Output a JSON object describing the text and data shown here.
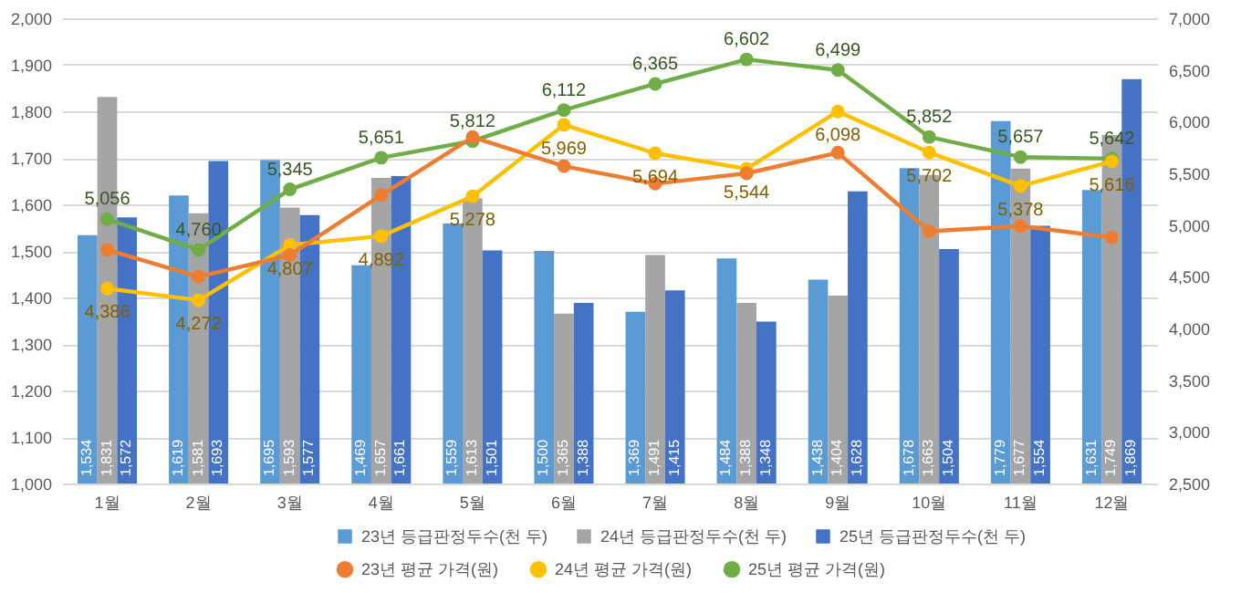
{
  "chart_data": {
    "type": "bar",
    "categories": [
      "1월",
      "2월",
      "3월",
      "4월",
      "5월",
      "6월",
      "7월",
      "8월",
      "9월",
      "10월",
      "11월",
      "12월"
    ],
    "series": [
      {
        "name": "23년 등급판정두수(천 두)",
        "color": "#5b9bd5",
        "values": [
          1534,
          1619,
          1695,
          1469,
          1559,
          1500,
          1369,
          1484,
          1438,
          1678,
          1779,
          1631
        ],
        "value_labels": [
          "1,534",
          "1,619",
          "1,695",
          "1,469",
          "1,559",
          "1,500",
          "1,369",
          "1,484",
          "1,438",
          "1,678",
          "1,779",
          "1,631"
        ]
      },
      {
        "name": "24년 등급판정두수(천 두)",
        "color": "#a5a5a5",
        "values": [
          1831,
          1581,
          1593,
          1657,
          1613,
          1365,
          1491,
          1388,
          1404,
          1663,
          1677,
          1749
        ],
        "value_labels": [
          "1,831",
          "1,581",
          "1,593",
          "1,657",
          "1,613",
          "1,365",
          "1,491",
          "1,388",
          "1,404",
          "1,663",
          "1,677",
          "1,749"
        ]
      },
      {
        "name": "25년 등급판정두수(천 두)",
        "color": "#4472c4",
        "values": [
          1572,
          1693,
          1577,
          1661,
          1501,
          1388,
          1415,
          1348,
          1628,
          1504,
          1554,
          1869
        ],
        "value_labels": [
          "1,572",
          "1,693",
          "1,577",
          "1,661",
          "1,501",
          "1,388",
          "1,415",
          "1,348",
          "1,628",
          "1,504",
          "1,554",
          "1,869"
        ]
      },
      {
        "name": "23년 평균 가격(원)",
        "type": "line",
        "axis": "y2",
        "color": "#ed7d31",
        "values": [
          4760,
          4500,
          4710,
          5290,
          5850,
          5570,
          5400,
          5500,
          5700,
          4940,
          4990,
          4880
        ]
      },
      {
        "name": "24년 평균 가격(원)",
        "type": "line",
        "axis": "y2",
        "color": "#ffc000",
        "values": [
          4386,
          4272,
          4807,
          4892,
          5278,
          5969,
          5694,
          5544,
          6098,
          5702,
          5378,
          5616
        ],
        "value_labels": [
          "4,386",
          "4,272",
          "4,807",
          "4,892",
          "5,278",
          "5,969",
          "5,694",
          "5,544",
          "6,098",
          "5,702",
          "5,378",
          "5,616"
        ]
      },
      {
        "name": "25년 평균 가격(원)",
        "type": "line",
        "axis": "y2",
        "color": "#70ad47",
        "values": [
          5056,
          4760,
          5345,
          5651,
          5812,
          6112,
          6365,
          6602,
          6499,
          5852,
          5657,
          5642
        ],
        "value_labels": [
          "5,056",
          "4,760",
          "5,345",
          "5,651",
          "5,812",
          "6,112",
          "6,365",
          "6,602",
          "6,499",
          "5,852",
          "5,657",
          "5,642"
        ]
      }
    ],
    "ylim": [
      1000,
      2000
    ],
    "yticks": [
      {
        "value": 1000,
        "label": "1,000"
      },
      {
        "value": 1100,
        "label": "1,100"
      },
      {
        "value": 1200,
        "label": "1,200"
      },
      {
        "value": 1300,
        "label": "1,300"
      },
      {
        "value": 1400,
        "label": "1,400"
      },
      {
        "value": 1500,
        "label": "1,500"
      },
      {
        "value": 1600,
        "label": "1,600"
      },
      {
        "value": 1700,
        "label": "1,700"
      },
      {
        "value": 1800,
        "label": "1,800"
      },
      {
        "value": 1900,
        "label": "1,900"
      },
      {
        "value": 2000,
        "label": "2,000"
      }
    ],
    "y2lim": [
      2500,
      7000
    ],
    "y2ticks": [
      {
        "value": 2500,
        "label": "2,500"
      },
      {
        "value": 3000,
        "label": "3,000"
      },
      {
        "value": 3500,
        "label": "3,500"
      },
      {
        "value": 4000,
        "label": "4,000"
      },
      {
        "value": 4500,
        "label": "4,500"
      },
      {
        "value": 5000,
        "label": "5,000"
      },
      {
        "value": 5500,
        "label": "5,500"
      },
      {
        "value": 6000,
        "label": "6,000"
      },
      {
        "value": 6500,
        "label": "6,500"
      },
      {
        "value": 7000,
        "label": "7,000"
      }
    ],
    "grid": "y",
    "legend": "bottom",
    "marker": "circle"
  }
}
